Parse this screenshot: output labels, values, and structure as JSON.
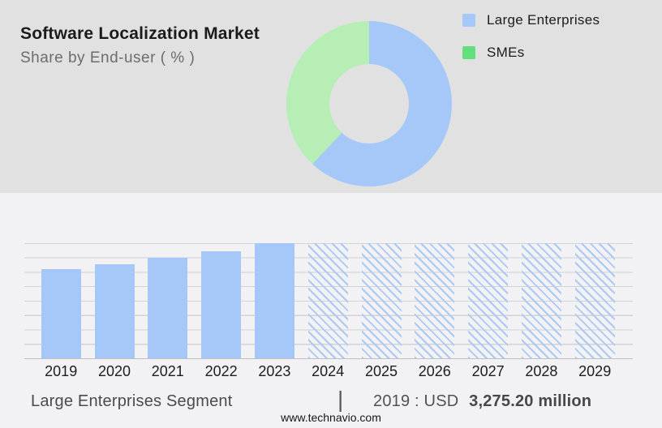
{
  "header": {
    "title": "Software Localization Market",
    "subtitle": "Share by End-user ( % )"
  },
  "legend": {
    "items": [
      {
        "label": "Large Enterprises",
        "color": "#a6c8f9"
      },
      {
        "label": "SMEs",
        "color": "#63df7e"
      }
    ]
  },
  "chart_data": [
    {
      "type": "pie",
      "subtype": "donut",
      "title": "Software Localization Market — Share by End-user ( % )",
      "segments": [
        {
          "name": "Large Enterprises",
          "value_pct": 62,
          "color": "#a6c8f9"
        },
        {
          "name": "SMEs",
          "value_pct": 38,
          "color": "#b6eeb6"
        }
      ],
      "note": "Percentages estimated from arc angles; no numeric data labels are shown in the image"
    },
    {
      "type": "bar",
      "x": [
        "2019",
        "2020",
        "2021",
        "2022",
        "2023",
        "2024",
        "2025",
        "2026",
        "2027",
        "2028",
        "2029"
      ],
      "relative_heights": [
        0.775,
        0.816,
        0.875,
        0.93,
        1.0,
        1.0,
        1.0,
        1.0,
        1.0,
        1.0,
        1.0
      ],
      "forecast": [
        false,
        false,
        false,
        false,
        false,
        true,
        true,
        true,
        true,
        true,
        true
      ],
      "bar_color": "#a6c8f9",
      "hatch_style": "diagonal-backslash",
      "gridline_count": 9,
      "xlabel": "",
      "ylabel": "",
      "y_axis_labels_shown": false,
      "annotation": "2019 : USD 3,275.20 million"
    }
  ],
  "footer": {
    "segment_label": "Large Enterprises Segment",
    "divider": "|",
    "value_prefix": "2019 : USD",
    "value_bold": "3,275.20 million",
    "website": "www.technavio.com"
  }
}
